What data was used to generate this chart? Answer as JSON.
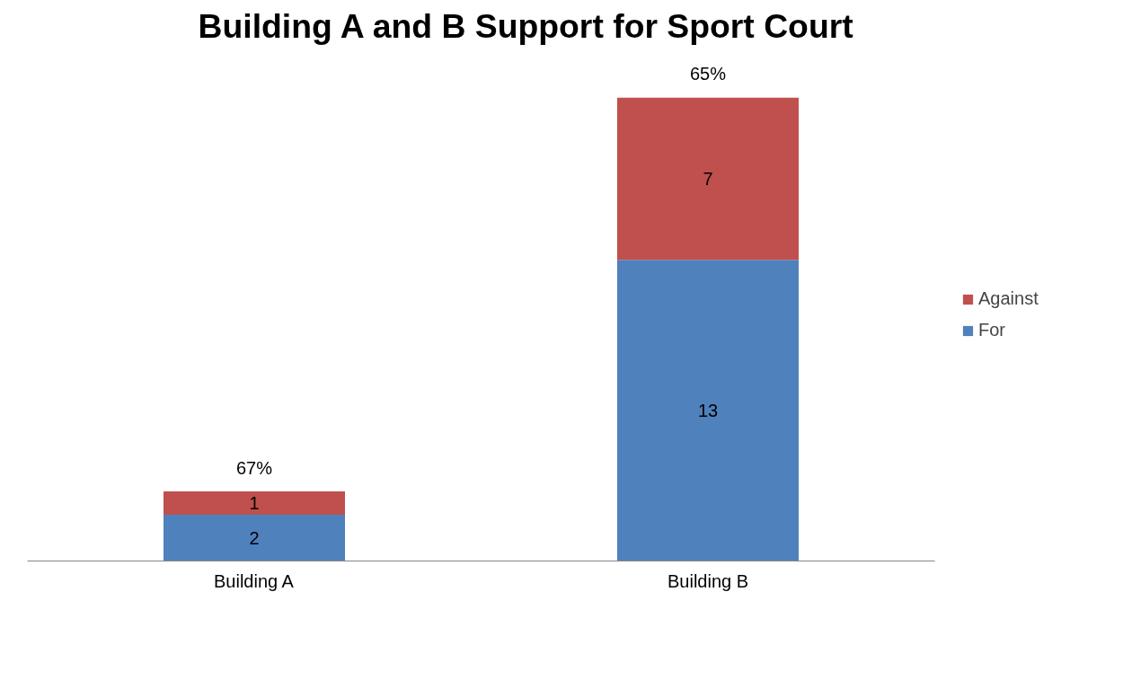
{
  "chart_data": {
    "type": "bar",
    "title": "Building A and B Support for Sport Court",
    "categories": [
      "Building A",
      "Building B"
    ],
    "stacked": true,
    "series": [
      {
        "name": "For",
        "color": "#4f81bd",
        "values": [
          2,
          13
        ]
      },
      {
        "name": "Against",
        "color": "#c0504d",
        "values": [
          1,
          7
        ]
      }
    ],
    "data_labels": true,
    "annotations": [
      {
        "text": "67%",
        "x": "Building A",
        "y": 3
      },
      {
        "text": "65%",
        "x": "Building B",
        "y": 20
      }
    ],
    "legend": "right",
    "grid": false,
    "tick_labels": "x"
  }
}
